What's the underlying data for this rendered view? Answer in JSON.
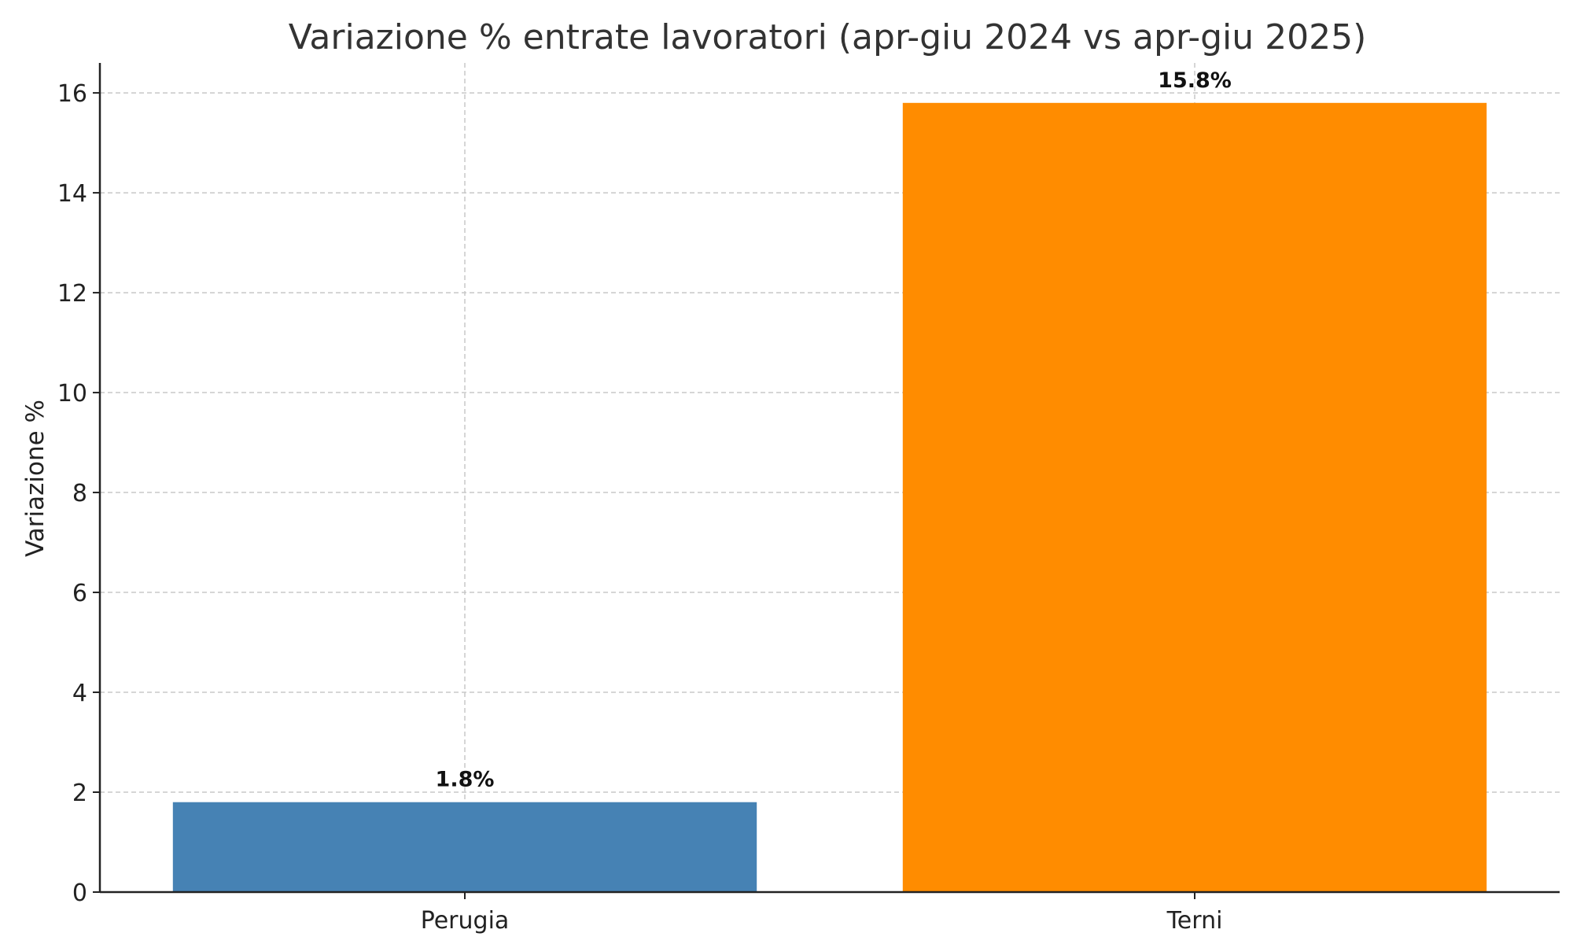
{
  "chart_data": {
    "type": "bar",
    "title": "Variazione % entrate lavoratori (apr-giu 2024 vs apr-giu 2025)",
    "xlabel": "",
    "ylabel": "Variazione %",
    "categories": [
      "Perugia",
      "Terni"
    ],
    "values": [
      1.8,
      15.8
    ],
    "data_labels": [
      "1.8%",
      "15.8%"
    ],
    "colors": [
      "#4682b4",
      "#ff8c00"
    ],
    "ylim": [
      0,
      16.6
    ],
    "yticks": [
      0,
      2,
      4,
      6,
      8,
      10,
      12,
      14,
      16
    ],
    "grid": true
  }
}
